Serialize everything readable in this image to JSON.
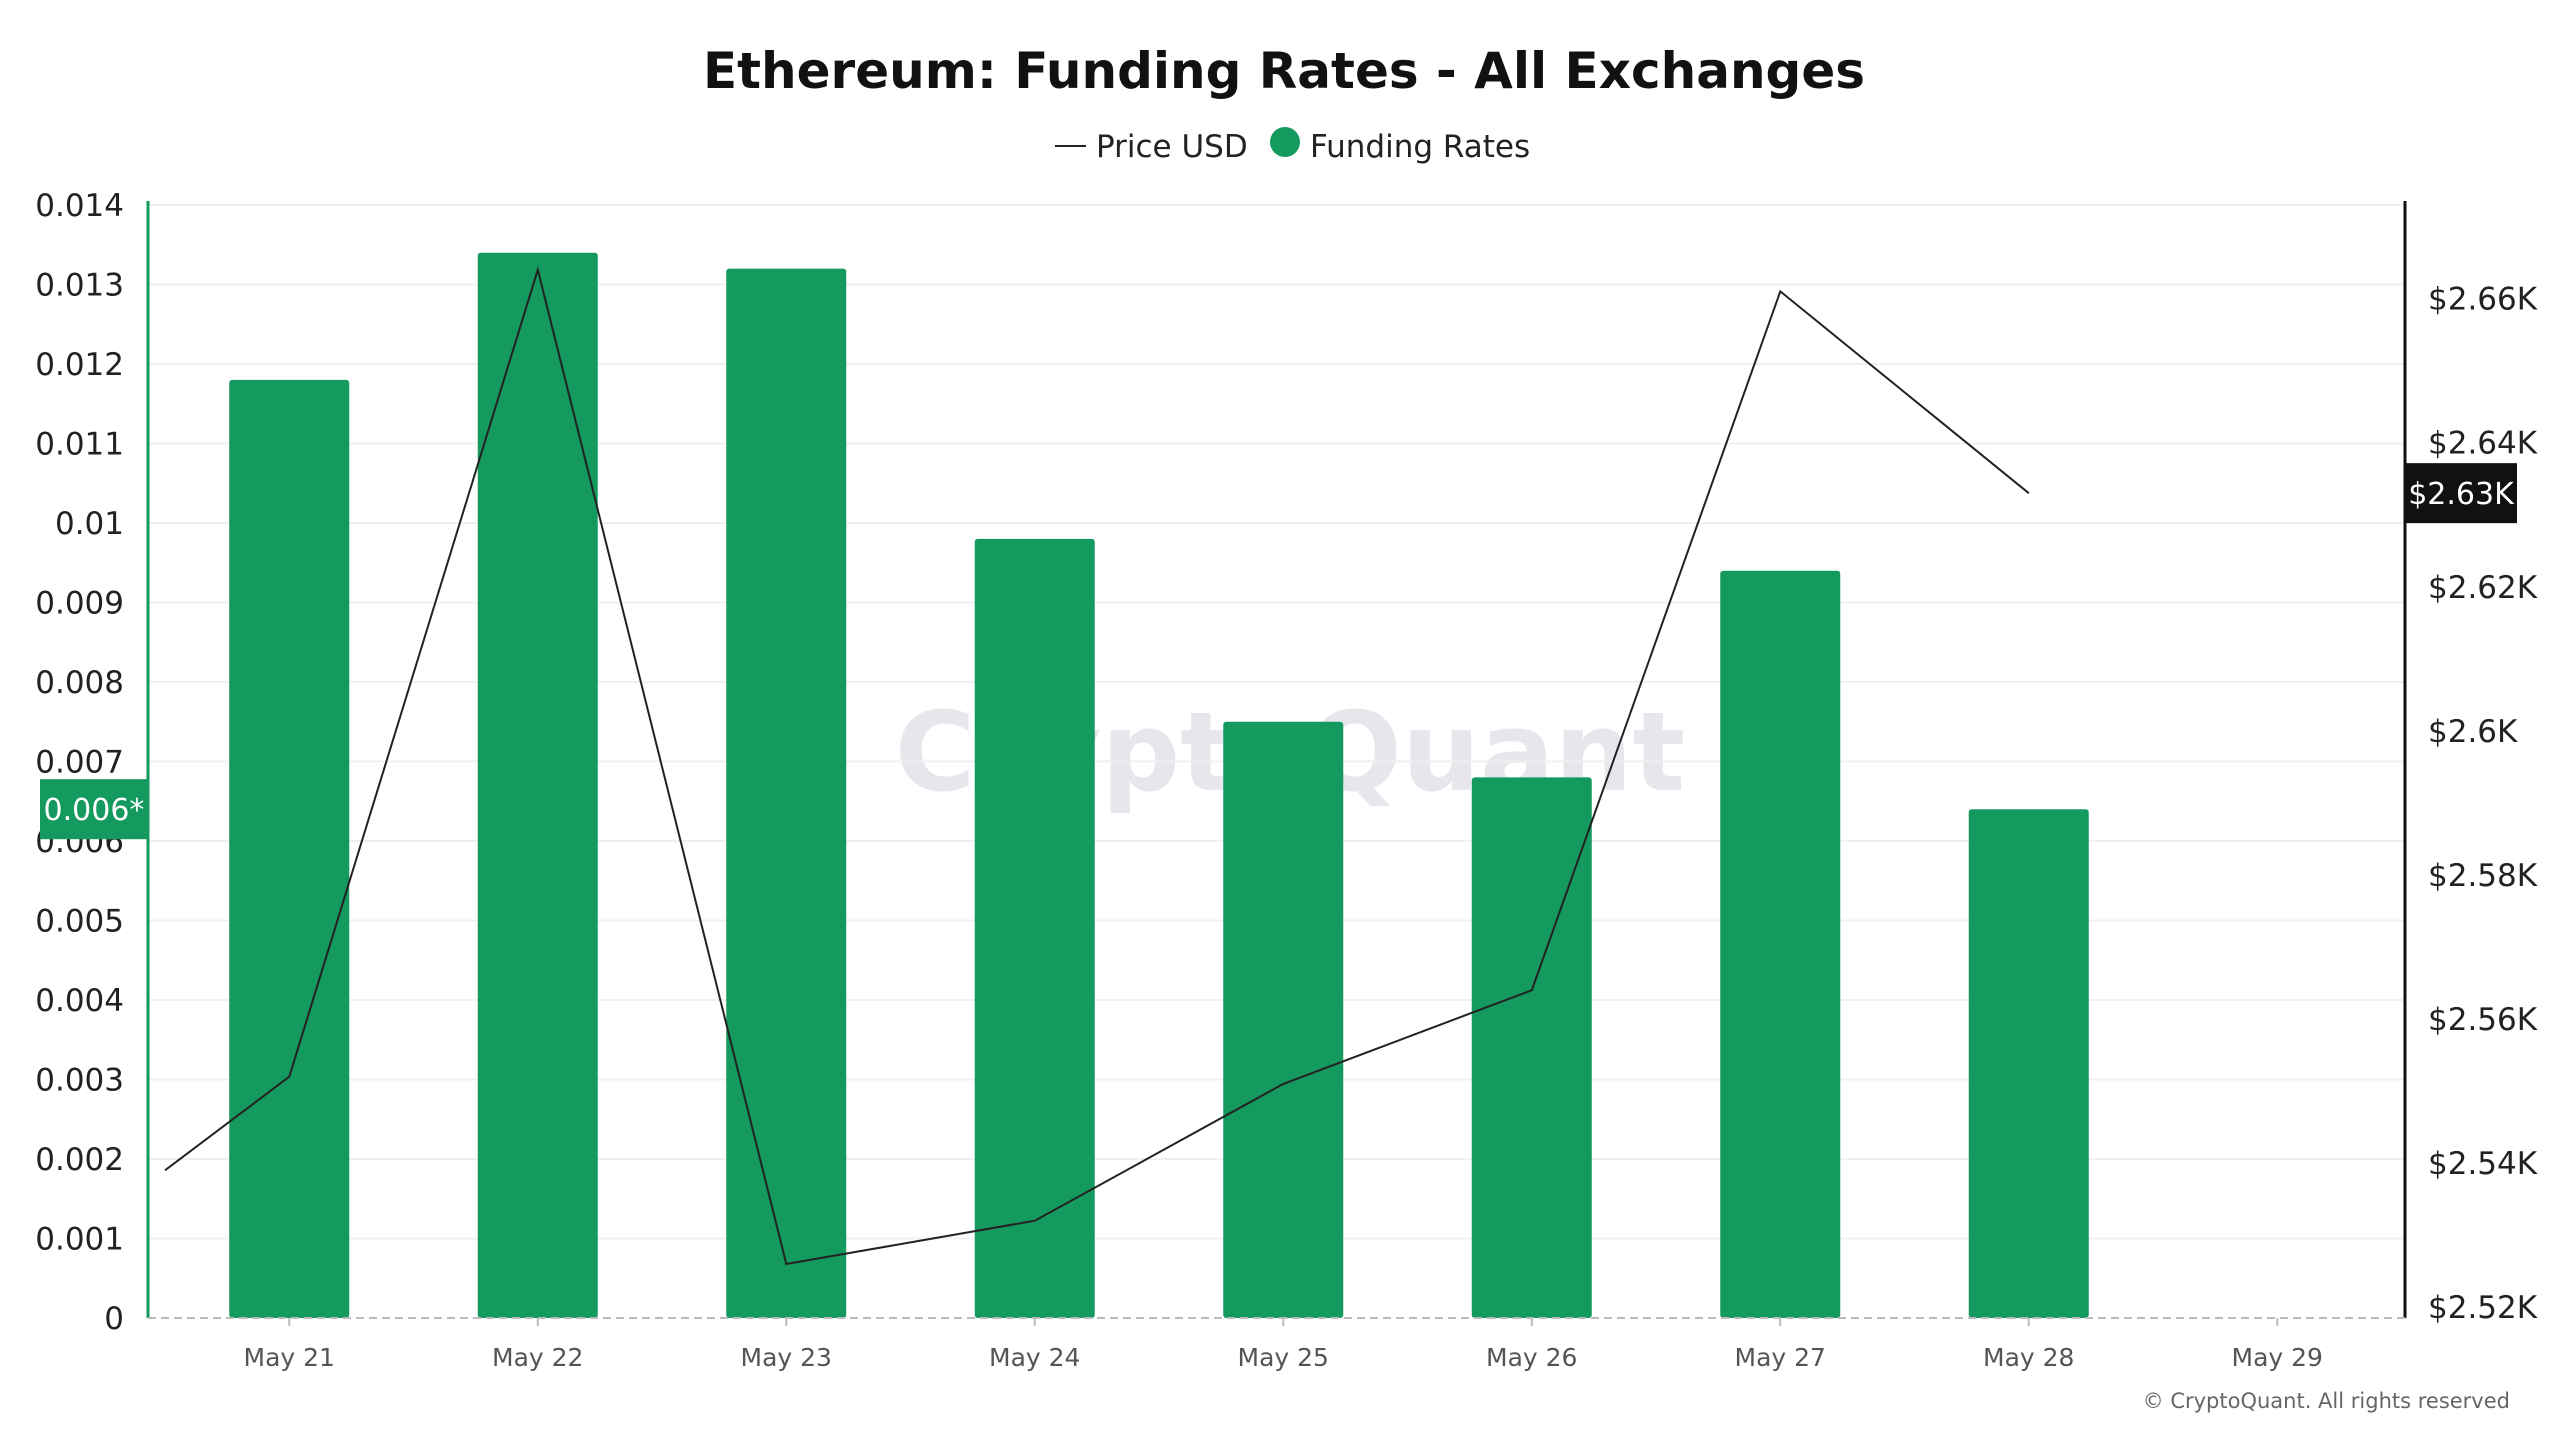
{
  "chart_data": {
    "type": "bar",
    "title": "Ethereum: Funding Rates - All Exchanges",
    "categories": [
      "May 21",
      "May 22",
      "May 23",
      "May 24",
      "May 25",
      "May 26",
      "May 27",
      "May 28",
      "May 29"
    ],
    "series": [
      {
        "name": "Funding Rates",
        "type": "bar",
        "axis": "left",
        "color": "#14995f",
        "values": [
          0.0118,
          0.0134,
          0.0132,
          0.0098,
          0.0075,
          0.0068,
          0.0094,
          0.0064,
          null
        ]
      },
      {
        "name": "Price USD",
        "type": "line",
        "axis": "right",
        "color": "#222222",
        "x": [
          "May 20.5",
          "May 21",
          "May 22",
          "May 23",
          "May 24",
          "May 25",
          "May 26",
          "May 27",
          "May 28"
        ],
        "values": [
          2539,
          2552,
          2664,
          2526,
          2532,
          2551,
          2564,
          2661,
          2633
        ]
      }
    ],
    "y_left": {
      "ylim": [
        0,
        0.014
      ],
      "ticks": [
        "0",
        "0.001",
        "0.002",
        "0.003",
        "0.004",
        "0.005",
        "0.006",
        "0.007",
        "0.008",
        "0.009",
        "0.01",
        "0.011",
        "0.012",
        "0.013",
        "0.014"
      ],
      "marker": {
        "label": "0.006*",
        "value": 0.0064,
        "color": "#14995f"
      }
    },
    "y_right": {
      "ylim": [
        2518.5,
        2673
      ],
      "ticks": [
        {
          "label": "$2.52K",
          "value": 2520
        },
        {
          "label": "$2.54K",
          "value": 2540
        },
        {
          "label": "$2.56K",
          "value": 2560
        },
        {
          "label": "$2.58K",
          "value": 2580
        },
        {
          "label": "$2.6K",
          "value": 2600
        },
        {
          "label": "$2.62K",
          "value": 2620
        },
        {
          "label": "$2.64K",
          "value": 2640
        },
        {
          "label": "$2.66K",
          "value": 2660
        }
      ],
      "marker": {
        "label": "$2.63K",
        "value": 2633,
        "color": "#111111"
      }
    },
    "grid": true,
    "legend": {
      "placement": "top-center",
      "items": [
        {
          "label": "Price USD",
          "symbol": "line"
        },
        {
          "label": "Funding Rates",
          "symbol": "circle"
        }
      ]
    }
  },
  "watermark": "CryptoQuant",
  "credit": "© CryptoQuant. All rights reserved"
}
